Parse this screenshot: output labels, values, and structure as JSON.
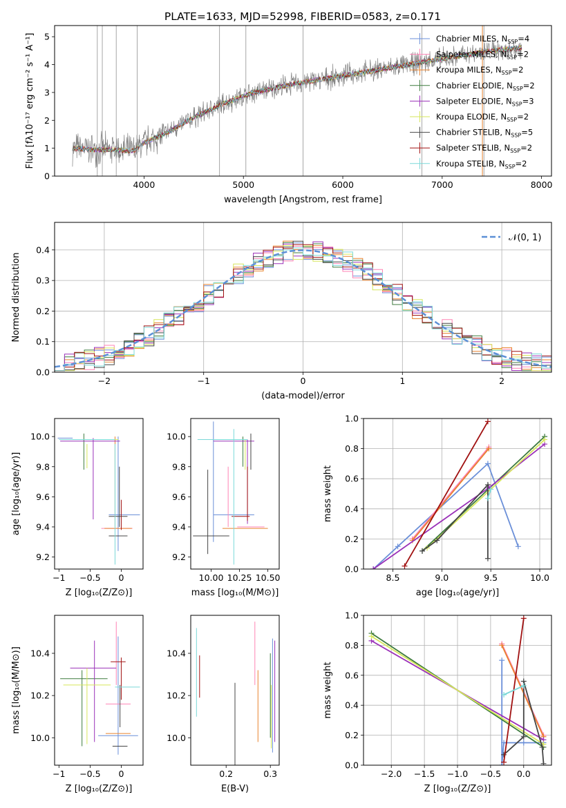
{
  "title": "PLATE=1633, MJD=52998, FIBERID=0583, z=0.171",
  "series": [
    {
      "name": "Chabrier MILES",
      "nssp": "4",
      "color": "#6a8fd8"
    },
    {
      "name": "Salpeter MILES",
      "nssp": "2",
      "color": "#ff82b4"
    },
    {
      "name": "Kroupa MILES",
      "nssp": "2",
      "color": "#e8822e"
    },
    {
      "name": "Chabrier ELODIE",
      "nssp": "2",
      "color": "#3c7a3c"
    },
    {
      "name": "Salpeter ELODIE",
      "nssp": "3",
      "color": "#9a30b8"
    },
    {
      "name": "Kroupa ELODIE",
      "nssp": "2",
      "color": "#d6e65a"
    },
    {
      "name": "Chabrier STELIB",
      "nssp": "5",
      "color": "#444444"
    },
    {
      "name": "Salpeter STELIB",
      "nssp": "2",
      "color": "#a01010"
    },
    {
      "name": "Kroupa STELIB",
      "nssp": "2",
      "color": "#7ad8d8"
    }
  ],
  "chart_data": [
    {
      "id": "spectrum",
      "type": "line",
      "xlabel": "wavelength [Angstrom, rest frame]",
      "ylabel": "Flux [fλ10⁻¹⁷ erg cm⁻² s⁻¹ A⁻¹]",
      "xlim": [
        3100,
        8100
      ],
      "ylim": [
        0,
        5.4
      ],
      "xticks": [
        4000,
        5000,
        6000,
        7000,
        8000
      ],
      "yticks": [
        0,
        1,
        2,
        3,
        4,
        5
      ],
      "data_color": "#808080",
      "continuum": {
        "x": [
          3280,
          3500,
          3700,
          3900,
          4000,
          4200,
          4500,
          4800,
          5100,
          5500,
          6000,
          6500,
          7000,
          7500,
          7800
        ],
        "y": [
          1.0,
          0.95,
          0.95,
          0.9,
          1.2,
          1.5,
          2.1,
          2.6,
          3.0,
          3.3,
          3.6,
          3.9,
          4.2,
          4.5,
          4.6
        ]
      },
      "legend": "right"
    },
    {
      "id": "residuals",
      "type": "step",
      "xlabel": "(data-model)/error",
      "ylabel": "Normed distribution",
      "xlim": [
        -2.5,
        2.5
      ],
      "ylim": [
        0,
        0.49
      ],
      "xticks": [
        -2,
        -1,
        0,
        1,
        2
      ],
      "yticks": [
        0.0,
        0.1,
        0.2,
        0.3,
        0.4
      ],
      "gaussian_label": "𝒩(0, 1)",
      "gaussian_color": "#5b8fd6",
      "legend": "top-right"
    },
    {
      "id": "age-vs-Z",
      "type": "errorbar",
      "xlabel": "Z [log₁₀(Z/Z⊙)]",
      "ylabel": "age  [log₁₀(age/yr)]",
      "xlim": [
        -1.07,
        0.35
      ],
      "ylim": [
        9.12,
        10.12
      ],
      "xticks": [
        -1.0,
        -0.5,
        0.0
      ],
      "yticks": [
        9.2,
        9.4,
        9.6,
        9.8,
        10.0
      ],
      "points": [
        {
          "s": 0,
          "x": 0.05,
          "y": 9.48,
          "xe": 0.25,
          "ye": 0.0
        },
        {
          "s": 0,
          "x": -0.9,
          "y": 9.99,
          "xe": 0.12,
          "ye": 0.0
        },
        {
          "s": 0,
          "x": -0.05,
          "y": 9.62,
          "xe": 0.0,
          "ye": 0.38
        },
        {
          "s": 1,
          "x": -0.07,
          "y": 9.39,
          "xe": 0.25,
          "ye": 0.0
        },
        {
          "s": 2,
          "x": -0.05,
          "y": 9.39,
          "xe": 0.22,
          "ye": 0.0
        },
        {
          "s": 2,
          "x": -0.1,
          "y": 9.7,
          "xe": 0.0,
          "ye": 0.3
        },
        {
          "s": 3,
          "x": -0.6,
          "y": 9.9,
          "xe": 0.0,
          "ye": 0.12
        },
        {
          "s": 4,
          "x": -0.45,
          "y": 9.72,
          "xe": 0.0,
          "ye": 0.27
        },
        {
          "s": 4,
          "x": -0.5,
          "y": 9.97,
          "xe": 0.48,
          "ye": 0.0
        },
        {
          "s": 5,
          "x": -0.55,
          "y": 9.87,
          "xe": 0.0,
          "ye": 0.08
        },
        {
          "s": 5,
          "x": -0.5,
          "y": 9.98,
          "xe": 0.45,
          "ye": 0.0
        },
        {
          "s": 6,
          "x": -0.03,
          "y": 9.6,
          "xe": 0.0,
          "ye": 0.2
        },
        {
          "s": 6,
          "x": -0.05,
          "y": 9.34,
          "xe": 0.15,
          "ye": 0.0
        },
        {
          "s": 6,
          "x": -0.05,
          "y": 9.47,
          "xe": 0.15,
          "ye": 0.0
        },
        {
          "s": 7,
          "x": 0.0,
          "y": 9.48,
          "xe": 0.0,
          "ye": 0.1
        },
        {
          "s": 8,
          "x": -0.1,
          "y": 9.55,
          "xe": 0.0,
          "ye": 0.4
        },
        {
          "s": 8,
          "x": -0.55,
          "y": 9.98,
          "xe": 0.45,
          "ye": 0.0
        }
      ]
    },
    {
      "id": "age-vs-mass",
      "type": "errorbar",
      "xlabel": "mass [log₁₀(M/M⊙)]",
      "ylabel": "",
      "xlim": [
        9.82,
        10.6
      ],
      "ylim": [
        9.12,
        10.12
      ],
      "xticks": [
        10.0,
        10.25,
        10.5
      ],
      "tick_labels": [
        "10.00",
        "10.25",
        "10.50"
      ],
      "yticks": [
        9.2,
        9.4,
        9.6,
        9.8,
        10.0
      ],
      "points": [
        {
          "s": 0,
          "x": 10.2,
          "y": 9.48,
          "xe": 0.18,
          "ye": 0.0
        },
        {
          "s": 0,
          "x": 10.02,
          "y": 9.7,
          "xe": 0.0,
          "ye": 0.4
        },
        {
          "s": 1,
          "x": 10.15,
          "y": 9.6,
          "xe": 0.0,
          "ye": 0.2
        },
        {
          "s": 1,
          "x": 10.35,
          "y": 9.4,
          "xe": 0.12,
          "ye": 0.0
        },
        {
          "s": 2,
          "x": 10.3,
          "y": 9.39,
          "xe": 0.2,
          "ye": 0.0
        },
        {
          "s": 3,
          "x": 10.28,
          "y": 9.9,
          "xe": 0.0,
          "ye": 0.1
        },
        {
          "s": 4,
          "x": 10.32,
          "y": 9.7,
          "xe": 0.0,
          "ye": 0.28
        },
        {
          "s": 4,
          "x": 10.2,
          "y": 9.97,
          "xe": 0.18,
          "ye": 0.0
        },
        {
          "s": 5,
          "x": 10.3,
          "y": 9.88,
          "xe": 0.0,
          "ye": 0.1
        },
        {
          "s": 6,
          "x": 9.97,
          "y": 9.5,
          "xe": 0.0,
          "ye": 0.28
        },
        {
          "s": 6,
          "x": 10.0,
          "y": 9.34,
          "xe": 0.16,
          "ye": 0.0
        },
        {
          "s": 6,
          "x": 10.35,
          "y": 9.9,
          "xe": 0.0,
          "ye": 0.12
        },
        {
          "s": 7,
          "x": 10.26,
          "y": 9.47,
          "xe": 0.08,
          "ye": 0.0
        },
        {
          "s": 7,
          "x": 10.32,
          "y": 9.62,
          "xe": 0.0,
          "ye": 0.18
        },
        {
          "s": 8,
          "x": 10.2,
          "y": 9.6,
          "xe": 0.0,
          "ye": 0.45
        },
        {
          "s": 8,
          "x": 10.1,
          "y": 9.98,
          "xe": 0.22,
          "ye": 0.0
        }
      ]
    },
    {
      "id": "mass-weight-vs-age",
      "type": "line",
      "xlabel": "age  [log₁₀(age/yr)]",
      "ylabel": "mass weight",
      "xlim": [
        8.2,
        10.12
      ],
      "ylim": [
        0,
        1
      ],
      "xticks": [
        8.5,
        9.0,
        9.5,
        10.0
      ],
      "tick_labels": [
        "8.5",
        "9.0",
        "9.5",
        "10.0"
      ],
      "yticks": [
        0,
        0.2,
        0.4,
        0.6,
        0.8,
        1.0
      ],
      "tick_labels_y": [
        "0.0",
        "0.2",
        "0.4",
        "0.6",
        "0.8",
        "1.0"
      ],
      "lines": [
        {
          "s": 0,
          "x": [
            8.3,
            8.55,
            9.47,
            9.78
          ],
          "y": [
            0.0,
            0.15,
            0.7,
            0.15
          ]
        },
        {
          "s": 1,
          "x": [
            8.7,
            9.48
          ],
          "y": [
            0.2,
            0.81
          ]
        },
        {
          "s": 2,
          "x": [
            8.7,
            9.48
          ],
          "y": [
            0.19,
            0.8
          ]
        },
        {
          "s": 3,
          "x": [
            8.8,
            10.05
          ],
          "y": [
            0.12,
            0.88
          ]
        },
        {
          "s": 4,
          "x": [
            8.3,
            9.48,
            10.05
          ],
          "y": [
            0.0,
            0.54,
            0.83
          ]
        },
        {
          "s": 5,
          "x": [
            8.85,
            10.05
          ],
          "y": [
            0.14,
            0.86
          ]
        },
        {
          "s": 6,
          "x": [
            8.8,
            8.95,
            9.47,
            9.47
          ],
          "y": [
            0.12,
            0.19,
            0.56,
            0.07
          ]
        },
        {
          "s": 7,
          "x": [
            8.62,
            9.47
          ],
          "y": [
            0.02,
            0.98
          ]
        },
        {
          "s": 8,
          "x": [
            9.47,
            9.5
          ],
          "y": [
            0.47,
            0.53
          ]
        }
      ]
    },
    {
      "id": "mass-vs-Z",
      "type": "errorbar",
      "xlabel": "Z [log₁₀(Z/Z⊙)]",
      "ylabel": "mass [log₁₀(M/M⊙)]",
      "xlim": [
        -1.07,
        0.35
      ],
      "ylim": [
        9.87,
        10.58
      ],
      "xticks": [
        -1.0,
        -0.5,
        0.0
      ],
      "yticks": [
        10.0,
        10.2,
        10.4
      ],
      "points": [
        {
          "s": 0,
          "x": -0.05,
          "y": 10.01,
          "xe": 0.32,
          "ye": 0.0
        },
        {
          "s": 0,
          "x": -0.05,
          "y": 10.2,
          "xe": 0.0,
          "ye": 0.28
        },
        {
          "s": 1,
          "x": -0.05,
          "y": 10.16,
          "xe": 0.2,
          "ye": 0.0
        },
        {
          "s": 1,
          "x": -0.08,
          "y": 10.4,
          "xe": 0.0,
          "ye": 0.15
        },
        {
          "s": 2,
          "x": -0.05,
          "y": 10.02,
          "xe": 0.2,
          "ye": 0.0
        },
        {
          "s": 3,
          "x": -0.63,
          "y": 10.14,
          "xe": 0.0,
          "ye": 0.18
        },
        {
          "s": 3,
          "x": -0.6,
          "y": 10.28,
          "xe": 0.38,
          "ye": 0.0
        },
        {
          "s": 4,
          "x": -0.45,
          "y": 10.33,
          "xe": 0.37,
          "ye": 0.0
        },
        {
          "s": 4,
          "x": -0.43,
          "y": 10.22,
          "xe": 0.0,
          "ye": 0.24
        },
        {
          "s": 5,
          "x": -0.55,
          "y": 10.25,
          "xe": 0.38,
          "ye": 0.0
        },
        {
          "s": 5,
          "x": -0.55,
          "y": 10.15,
          "xe": 0.0,
          "ye": 0.18
        },
        {
          "s": 6,
          "x": -0.02,
          "y": 9.96,
          "xe": 0.12,
          "ye": 0.0
        },
        {
          "s": 6,
          "x": -0.02,
          "y": 10.15,
          "xe": 0.0,
          "ye": 0.1
        },
        {
          "s": 7,
          "x": -0.05,
          "y": 10.36,
          "xe": 0.12,
          "ye": 0.0
        },
        {
          "s": 7,
          "x": 0.0,
          "y": 10.28,
          "xe": 0.0,
          "ye": 0.1
        },
        {
          "s": 8,
          "x": 0.1,
          "y": 10.24,
          "xe": 0.2,
          "ye": 0.0
        }
      ]
    },
    {
      "id": "mass-vs-EBV",
      "type": "errorbar",
      "xlabel": "E(B-V)",
      "ylabel": "",
      "xlim": [
        0.12,
        0.32
      ],
      "ylim": [
        9.87,
        10.58
      ],
      "xticks": [
        0.2,
        0.3
      ],
      "tick_labels": [
        "0.2",
        "0.3"
      ],
      "yticks": [
        10.0,
        10.2,
        10.4
      ],
      "points": [
        {
          "s": 0,
          "x": 0.305,
          "y": 10.2,
          "xe": 0.0,
          "ye": 0.27
        },
        {
          "s": 1,
          "x": 0.265,
          "y": 10.4,
          "xe": 0.0,
          "ye": 0.15
        },
        {
          "s": 2,
          "x": 0.272,
          "y": 10.15,
          "xe": 0.0,
          "ye": 0.17
        },
        {
          "s": 3,
          "x": 0.3,
          "y": 10.2,
          "xe": 0.0,
          "ye": 0.2
        },
        {
          "s": 4,
          "x": 0.31,
          "y": 10.22,
          "xe": 0.0,
          "ye": 0.24
        },
        {
          "s": 5,
          "x": 0.302,
          "y": 10.1,
          "xe": 0.0,
          "ye": 0.15
        },
        {
          "s": 6,
          "x": 0.22,
          "y": 10.06,
          "xe": 0.0,
          "ye": 0.2
        },
        {
          "s": 7,
          "x": 0.14,
          "y": 10.29,
          "xe": 0.0,
          "ye": 0.1
        },
        {
          "s": 8,
          "x": 0.133,
          "y": 10.31,
          "xe": 0.0,
          "ye": 0.21
        }
      ]
    },
    {
      "id": "mass-weight-vs-Z",
      "type": "line",
      "xlabel": "Z [log₁₀(Z/Z⊙)]",
      "ylabel": "mass weight",
      "xlim": [
        -2.42,
        0.42
      ],
      "ylim": [
        0,
        1
      ],
      "xticks": [
        -2.0,
        -1.5,
        -1.0,
        -0.5,
        0.0
      ],
      "tick_labels": [
        "−2.0",
        "−1.5",
        "−1.0",
        "−0.5",
        "0.0"
      ],
      "yticks": [
        0,
        0.2,
        0.4,
        0.6,
        0.8,
        1.0
      ],
      "tick_labels_y": [
        "0.0",
        "0.2",
        "0.4",
        "0.6",
        "0.8",
        "1.0"
      ],
      "lines": [
        {
          "s": 0,
          "x": [
            -0.33,
            -0.33,
            -0.3,
            0.0,
            0.3
          ],
          "y": [
            0.7,
            0.0,
            0.15,
            0.15,
            0.15
          ]
        },
        {
          "s": 1,
          "x": [
            -0.33,
            0.3
          ],
          "y": [
            0.81,
            0.2
          ]
        },
        {
          "s": 2,
          "x": [
            -0.33,
            0.3
          ],
          "y": [
            0.8,
            0.19
          ]
        },
        {
          "s": 3,
          "x": [
            -2.3,
            0.3
          ],
          "y": [
            0.88,
            0.12
          ]
        },
        {
          "s": 4,
          "x": [
            -2.3,
            0.3
          ],
          "y": [
            0.83,
            0.17
          ]
        },
        {
          "s": 5,
          "x": [
            -2.3,
            0.3
          ],
          "y": [
            0.86,
            0.14
          ]
        },
        {
          "s": 6,
          "x": [
            -0.3,
            0.0,
            0.0,
            0.28,
            0.3
          ],
          "y": [
            0.07,
            0.19,
            0.56,
            0.12,
            0.01
          ]
        },
        {
          "s": 7,
          "x": [
            -0.3,
            0.0
          ],
          "y": [
            0.02,
            0.98
          ]
        },
        {
          "s": 8,
          "x": [
            -0.3,
            0.0
          ],
          "y": [
            0.47,
            0.53
          ]
        }
      ]
    }
  ]
}
